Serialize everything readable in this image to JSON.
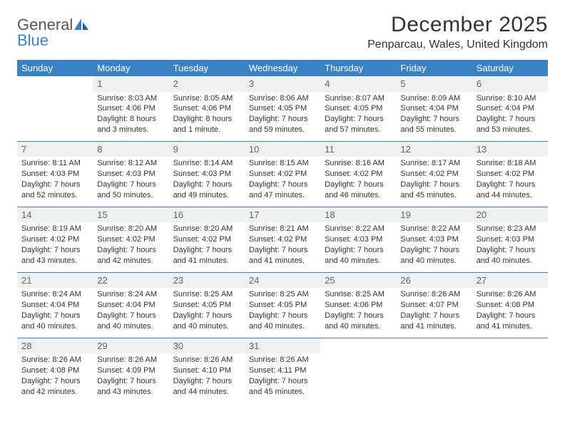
{
  "brand": {
    "part1": "General",
    "part2": "Blue"
  },
  "title": "December 2025",
  "location": "Penparcau, Wales, United Kingdom",
  "colors": {
    "header_bg": "#3a82c4",
    "header_text": "#ffffff",
    "daynum_bg": "#eef0f1",
    "daynum_text": "#666666",
    "row_divider": "#3a82c4",
    "body_text": "#333333",
    "logo_gray": "#57585a",
    "logo_blue": "#3a82c4",
    "page_bg": "#ffffff"
  },
  "typography": {
    "title_fontsize": 30,
    "location_fontsize": 16,
    "dow_fontsize": 13,
    "daynum_fontsize": 13,
    "cell_fontsize": 11
  },
  "day_headers": [
    "Sunday",
    "Monday",
    "Tuesday",
    "Wednesday",
    "Thursday",
    "Friday",
    "Saturday"
  ],
  "weeks": [
    [
      {
        "n": "",
        "lines": [
          "",
          "",
          "",
          ""
        ],
        "empty": true
      },
      {
        "n": "1",
        "lines": [
          "Sunrise: 8:03 AM",
          "Sunset: 4:06 PM",
          "Daylight: 8 hours",
          "and 3 minutes."
        ]
      },
      {
        "n": "2",
        "lines": [
          "Sunrise: 8:05 AM",
          "Sunset: 4:06 PM",
          "Daylight: 8 hours",
          "and 1 minute."
        ]
      },
      {
        "n": "3",
        "lines": [
          "Sunrise: 8:06 AM",
          "Sunset: 4:05 PM",
          "Daylight: 7 hours",
          "and 59 minutes."
        ]
      },
      {
        "n": "4",
        "lines": [
          "Sunrise: 8:07 AM",
          "Sunset: 4:05 PM",
          "Daylight: 7 hours",
          "and 57 minutes."
        ]
      },
      {
        "n": "5",
        "lines": [
          "Sunrise: 8:09 AM",
          "Sunset: 4:04 PM",
          "Daylight: 7 hours",
          "and 55 minutes."
        ]
      },
      {
        "n": "6",
        "lines": [
          "Sunrise: 8:10 AM",
          "Sunset: 4:04 PM",
          "Daylight: 7 hours",
          "and 53 minutes."
        ]
      }
    ],
    [
      {
        "n": "7",
        "lines": [
          "Sunrise: 8:11 AM",
          "Sunset: 4:03 PM",
          "Daylight: 7 hours",
          "and 52 minutes."
        ]
      },
      {
        "n": "8",
        "lines": [
          "Sunrise: 8:12 AM",
          "Sunset: 4:03 PM",
          "Daylight: 7 hours",
          "and 50 minutes."
        ]
      },
      {
        "n": "9",
        "lines": [
          "Sunrise: 8:14 AM",
          "Sunset: 4:03 PM",
          "Daylight: 7 hours",
          "and 49 minutes."
        ]
      },
      {
        "n": "10",
        "lines": [
          "Sunrise: 8:15 AM",
          "Sunset: 4:02 PM",
          "Daylight: 7 hours",
          "and 47 minutes."
        ]
      },
      {
        "n": "11",
        "lines": [
          "Sunrise: 8:16 AM",
          "Sunset: 4:02 PM",
          "Daylight: 7 hours",
          "and 46 minutes."
        ]
      },
      {
        "n": "12",
        "lines": [
          "Sunrise: 8:17 AM",
          "Sunset: 4:02 PM",
          "Daylight: 7 hours",
          "and 45 minutes."
        ]
      },
      {
        "n": "13",
        "lines": [
          "Sunrise: 8:18 AM",
          "Sunset: 4:02 PM",
          "Daylight: 7 hours",
          "and 44 minutes."
        ]
      }
    ],
    [
      {
        "n": "14",
        "lines": [
          "Sunrise: 8:19 AM",
          "Sunset: 4:02 PM",
          "Daylight: 7 hours",
          "and 43 minutes."
        ]
      },
      {
        "n": "15",
        "lines": [
          "Sunrise: 8:20 AM",
          "Sunset: 4:02 PM",
          "Daylight: 7 hours",
          "and 42 minutes."
        ]
      },
      {
        "n": "16",
        "lines": [
          "Sunrise: 8:20 AM",
          "Sunset: 4:02 PM",
          "Daylight: 7 hours",
          "and 41 minutes."
        ]
      },
      {
        "n": "17",
        "lines": [
          "Sunrise: 8:21 AM",
          "Sunset: 4:02 PM",
          "Daylight: 7 hours",
          "and 41 minutes."
        ]
      },
      {
        "n": "18",
        "lines": [
          "Sunrise: 8:22 AM",
          "Sunset: 4:03 PM",
          "Daylight: 7 hours",
          "and 40 minutes."
        ]
      },
      {
        "n": "19",
        "lines": [
          "Sunrise: 8:22 AM",
          "Sunset: 4:03 PM",
          "Daylight: 7 hours",
          "and 40 minutes."
        ]
      },
      {
        "n": "20",
        "lines": [
          "Sunrise: 8:23 AM",
          "Sunset: 4:03 PM",
          "Daylight: 7 hours",
          "and 40 minutes."
        ]
      }
    ],
    [
      {
        "n": "21",
        "lines": [
          "Sunrise: 8:24 AM",
          "Sunset: 4:04 PM",
          "Daylight: 7 hours",
          "and 40 minutes."
        ]
      },
      {
        "n": "22",
        "lines": [
          "Sunrise: 8:24 AM",
          "Sunset: 4:04 PM",
          "Daylight: 7 hours",
          "and 40 minutes."
        ]
      },
      {
        "n": "23",
        "lines": [
          "Sunrise: 8:25 AM",
          "Sunset: 4:05 PM",
          "Daylight: 7 hours",
          "and 40 minutes."
        ]
      },
      {
        "n": "24",
        "lines": [
          "Sunrise: 8:25 AM",
          "Sunset: 4:05 PM",
          "Daylight: 7 hours",
          "and 40 minutes."
        ]
      },
      {
        "n": "25",
        "lines": [
          "Sunrise: 8:25 AM",
          "Sunset: 4:06 PM",
          "Daylight: 7 hours",
          "and 40 minutes."
        ]
      },
      {
        "n": "26",
        "lines": [
          "Sunrise: 8:26 AM",
          "Sunset: 4:07 PM",
          "Daylight: 7 hours",
          "and 41 minutes."
        ]
      },
      {
        "n": "27",
        "lines": [
          "Sunrise: 8:26 AM",
          "Sunset: 4:08 PM",
          "Daylight: 7 hours",
          "and 41 minutes."
        ]
      }
    ],
    [
      {
        "n": "28",
        "lines": [
          "Sunrise: 8:26 AM",
          "Sunset: 4:08 PM",
          "Daylight: 7 hours",
          "and 42 minutes."
        ]
      },
      {
        "n": "29",
        "lines": [
          "Sunrise: 8:26 AM",
          "Sunset: 4:09 PM",
          "Daylight: 7 hours",
          "and 43 minutes."
        ]
      },
      {
        "n": "30",
        "lines": [
          "Sunrise: 8:26 AM",
          "Sunset: 4:10 PM",
          "Daylight: 7 hours",
          "and 44 minutes."
        ]
      },
      {
        "n": "31",
        "lines": [
          "Sunrise: 8:26 AM",
          "Sunset: 4:11 PM",
          "Daylight: 7 hours",
          "and 45 minutes."
        ]
      },
      {
        "n": "",
        "lines": [
          "",
          "",
          "",
          ""
        ],
        "empty": true
      },
      {
        "n": "",
        "lines": [
          "",
          "",
          "",
          ""
        ],
        "empty": true
      },
      {
        "n": "",
        "lines": [
          "",
          "",
          "",
          ""
        ],
        "empty": true
      }
    ]
  ]
}
